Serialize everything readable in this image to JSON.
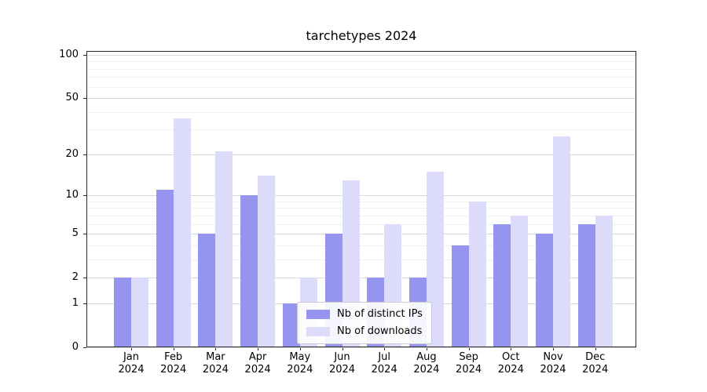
{
  "title": "tarchetypes 2024",
  "chart_data": {
    "type": "bar",
    "title": "tarchetypes 2024",
    "categories": [
      "Jan 2024",
      "Feb 2024",
      "Mar 2024",
      "Apr 2024",
      "May 2024",
      "Jun 2024",
      "Jul 2024",
      "Aug 2024",
      "Sep 2024",
      "Oct 2024",
      "Nov 2024",
      "Dec 2024"
    ],
    "series": [
      {
        "name": "Nb of distinct IPs",
        "color": "#9595f0",
        "values": [
          2,
          11,
          5,
          10,
          1,
          5,
          2,
          2,
          4,
          6,
          5,
          6
        ]
      },
      {
        "name": "Nb of downloads",
        "color": "#dcdcfa",
        "values": [
          2,
          36,
          21,
          14,
          2,
          13,
          6,
          15,
          9,
          7,
          27,
          7
        ]
      }
    ],
    "yscale": "log1p",
    "ylim": [
      0,
      106
    ],
    "yticks": [
      0,
      1,
      2,
      5,
      10,
      20,
      50,
      100
    ],
    "minor_yticks": [
      3,
      4,
      6,
      7,
      8,
      9,
      30,
      40,
      60,
      70,
      80,
      90
    ],
    "grid": true,
    "legend_position": "lower center"
  },
  "legend": {
    "items": [
      {
        "label": "Nb of distinct IPs",
        "color": "#9595f0"
      },
      {
        "label": "Nb of downloads",
        "color": "#dcdcfa"
      }
    ]
  },
  "colors": {
    "grid_major": "#d9d9d9",
    "grid_minor": "#efefef",
    "spine": "#2a2a2a",
    "background": "#ffffff"
  }
}
